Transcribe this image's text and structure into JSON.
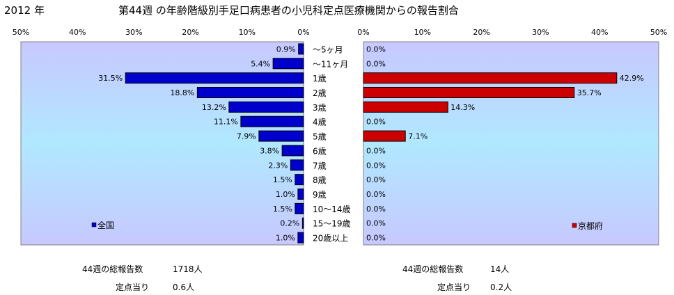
{
  "header": {
    "year": "2012 年",
    "title": "第44週 の年齢階級別手足口病患者の小児科定点医療機関からの報告割合"
  },
  "chart_data": [
    {
      "type": "bar",
      "orientation": "horizontal",
      "direction": "right-to-left",
      "categories": [
        "～5ヶ月",
        "～11ヶ月",
        "1歳",
        "2歳",
        "3歳",
        "4歳",
        "5歳",
        "6歳",
        "7歳",
        "8歳",
        "9歳",
        "10～14歳",
        "15～19歳",
        "20歳以上"
      ],
      "series": [
        {
          "name": "全国",
          "color": "#0000cc",
          "values": [
            0.9,
            5.4,
            31.5,
            18.8,
            13.2,
            11.1,
            7.9,
            3.8,
            2.3,
            1.5,
            1.0,
            1.5,
            0.2,
            1.0
          ],
          "labels": [
            "0.9%",
            "5.4%",
            "31.5%",
            "18.8%",
            "13.2%",
            "11.1%",
            "7.9%",
            "3.8%",
            "2.3%",
            "1.5%",
            "1.0%",
            "1.5%",
            "0.2%",
            "1.0%"
          ]
        }
      ],
      "xlim": [
        0,
        50
      ],
      "ticks": [
        "50%",
        "40%",
        "30%",
        "20%",
        "10%",
        "0%"
      ],
      "legend_position": "bottom-left"
    },
    {
      "type": "bar",
      "orientation": "horizontal",
      "direction": "left-to-right",
      "categories": [
        "～5ヶ月",
        "～11ヶ月",
        "1歳",
        "2歳",
        "3歳",
        "4歳",
        "5歳",
        "6歳",
        "7歳",
        "8歳",
        "9歳",
        "10～14歳",
        "15～19歳",
        "20歳以上"
      ],
      "series": [
        {
          "name": "京都府",
          "color": "#cc0000",
          "values": [
            0.0,
            0.0,
            42.9,
            35.7,
            14.3,
            0.0,
            7.1,
            0.0,
            0.0,
            0.0,
            0.0,
            0.0,
            0.0,
            0.0
          ],
          "labels": [
            "0.0%",
            "0.0%",
            "42.9%",
            "35.7%",
            "14.3%",
            "0.0%",
            "7.1%",
            "0.0%",
            "0.0%",
            "0.0%",
            "0.0%",
            "0.0%",
            "0.0%",
            "0.0%"
          ]
        }
      ],
      "xlim": [
        0,
        50
      ],
      "ticks": [
        "0%",
        "10%",
        "20%",
        "30%",
        "40%",
        "50%"
      ],
      "legend_position": "bottom-right"
    }
  ],
  "footer": {
    "left": {
      "total_label": "44週の総報告数",
      "total_value": "1718人",
      "per_label": "定点当り",
      "per_value": "0.6人"
    },
    "right": {
      "total_label": "44週の総報告数",
      "total_value": "14人",
      "per_label": "定点当り",
      "per_value": "0.2人"
    }
  }
}
